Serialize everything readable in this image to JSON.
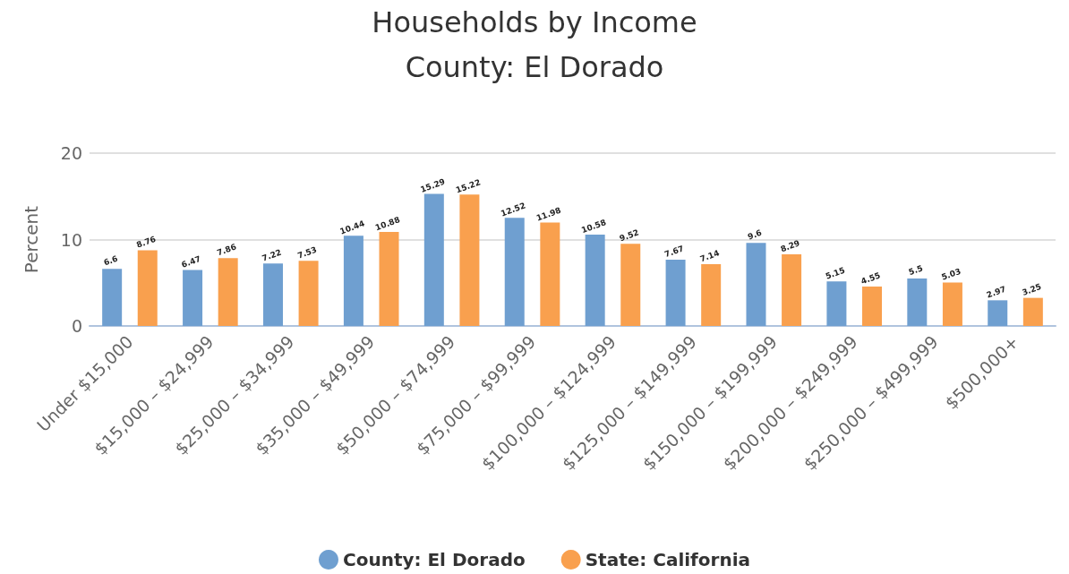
{
  "chart_data": {
    "type": "bar",
    "title": "Households by Income",
    "subtitle": "County: El Dorado",
    "ylabel": "Percent",
    "categories": [
      "Under $15,000",
      "$15,000 – $24,999",
      "$25,000 – $34,999",
      "$35,000 – $49,999",
      "$50,000 – $74,999",
      "$75,000 – $99,999",
      "$100,000 – $124,999",
      "$125,000 – $149,999",
      "$150,000 – $199,999",
      "$200,000 – $249,999",
      "$250,000 – $499,999",
      "$500,000+"
    ],
    "series": [
      {
        "name": "County: El Dorado",
        "color": "#6f9fd0",
        "values": [
          6.6,
          6.47,
          7.22,
          10.44,
          15.29,
          12.52,
          10.58,
          7.67,
          9.6,
          5.15,
          5.5,
          2.97
        ]
      },
      {
        "name": "State: California",
        "color": "#f9a04e",
        "values": [
          8.76,
          7.86,
          7.53,
          10.88,
          15.22,
          11.98,
          9.52,
          7.14,
          8.29,
          4.55,
          5.03,
          3.25
        ]
      }
    ],
    "ylim": [
      0,
      20
    ],
    "yticks": [
      0,
      10,
      20
    ],
    "grid": "y",
    "legend": "bottom",
    "data_labels": true
  }
}
